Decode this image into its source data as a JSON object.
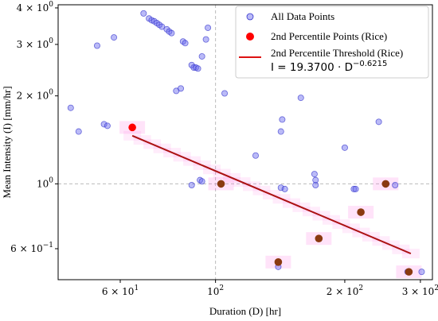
{
  "chart_data": {
    "type": "scatter",
    "xlabel": "Duration (D) [hr]",
    "ylabel": "Mean Intensity (I) [mm/hr]",
    "x_scale": "log",
    "y_scale": "log",
    "xlim": [
      43,
      320
    ],
    "ylim": [
      0.47,
      4.1
    ],
    "grid": false,
    "legend_position": "top-right",
    "x_ticks": [
      {
        "value": 60,
        "base": "6 × 10",
        "exp": "1"
      },
      {
        "value": 100,
        "base": "10",
        "exp": "2"
      },
      {
        "value": 200,
        "base": "2 × 10",
        "exp": "2"
      },
      {
        "value": 300,
        "base": "3 × 10",
        "exp": "2"
      }
    ],
    "y_ticks": [
      {
        "value": 0.6,
        "base": "6 × 10",
        "exp": "−1"
      },
      {
        "value": 1,
        "base": "10",
        "exp": "0"
      },
      {
        "value": 2,
        "base": "2 × 10",
        "exp": "0"
      },
      {
        "value": 3,
        "base": "3 × 10",
        "exp": "0"
      },
      {
        "value": 4,
        "base": "4 × 10",
        "exp": "0"
      }
    ],
    "reference_lines": {
      "x": 100,
      "y": 1
    },
    "series": [
      {
        "name": "All Data Points",
        "kind": "scatter",
        "color": "#6666ee",
        "points": [
          [
            46,
            1.82
          ],
          [
            48,
            1.51
          ],
          [
            53,
            2.97
          ],
          [
            55,
            1.6
          ],
          [
            56,
            1.58
          ],
          [
            58,
            3.17
          ],
          [
            68,
            3.83
          ],
          [
            70,
            3.68
          ],
          [
            71,
            3.63
          ],
          [
            72,
            3.6
          ],
          [
            73,
            3.55
          ],
          [
            74,
            3.5
          ],
          [
            75,
            3.45
          ],
          [
            77,
            3.38
          ],
          [
            78,
            3.32
          ],
          [
            79,
            3.28
          ],
          [
            81,
            2.08
          ],
          [
            83,
            2.12
          ],
          [
            84,
            3.07
          ],
          [
            85,
            3.03
          ],
          [
            88,
            2.55
          ],
          [
            89,
            2.5
          ],
          [
            90,
            2.5
          ],
          [
            91,
            2.48
          ],
          [
            93,
            2.73
          ],
          [
            95,
            3.12
          ],
          [
            96,
            3.42
          ],
          [
            88,
            0.99
          ],
          [
            92,
            1.03
          ],
          [
            93,
            1.02
          ],
          [
            105,
            2.04
          ],
          [
            124,
            1.25
          ],
          [
            140,
            0.52
          ],
          [
            142,
            1.51
          ],
          [
            142,
            0.97
          ],
          [
            143,
            1.66
          ],
          [
            145,
            0.96
          ],
          [
            158,
            1.97
          ],
          [
            170,
            1.08
          ],
          [
            171,
            1.03
          ],
          [
            171,
            0.99
          ],
          [
            200,
            1.33
          ],
          [
            210,
            0.96
          ],
          [
            212,
            0.96
          ],
          [
            240,
            1.63
          ],
          [
            250,
            1.0
          ],
          [
            262,
            0.99
          ],
          [
            280,
            0.5
          ],
          [
            302,
            0.5
          ]
        ]
      },
      {
        "name": "2nd Percentile Points (Rice)",
        "kind": "scatter",
        "color": "#ff0000",
        "points": [
          [
            64,
            1.56
          ],
          [
            103,
            1.0
          ],
          [
            140,
            0.54
          ],
          [
            174,
            0.65
          ],
          [
            218,
            0.8
          ],
          [
            249,
            1.0
          ],
          [
            282,
            0.5
          ]
        ]
      },
      {
        "name": "2nd Percentile Threshold (Rice)",
        "kind": "line",
        "color": "#dd1111",
        "coefficient": 19.37,
        "exponent": -0.6215,
        "x_range": [
          64,
          285
        ],
        "equation": {
          "lhs": "I = 19.3700 · D",
          "exp": "−0.6215"
        }
      }
    ]
  }
}
